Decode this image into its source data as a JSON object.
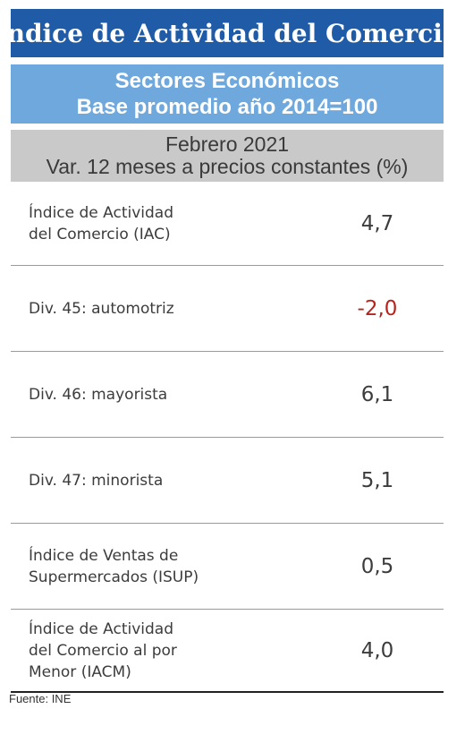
{
  "title": "Índice de Actividad del Comercio",
  "subtitle": {
    "line1": "Sectores Económicos",
    "line2": "Base promedio año 2014=100"
  },
  "period": {
    "line1": "Febrero 2021",
    "line2": "Var. 12 meses a precios constantes (%)"
  },
  "rows": [
    {
      "label": "Índice de Actividad\ndel Comercio (IAC)",
      "value": "4,7"
    },
    {
      "label": "Div. 45: automotriz",
      "value": "-2,0"
    },
    {
      "label": "Div. 46: mayorista",
      "value": "6,1"
    },
    {
      "label": "Div. 47: minorista",
      "value": "5,1"
    },
    {
      "label": "Índice de Ventas de\nSupermercados (ISUP)",
      "value": "0,5"
    },
    {
      "label": "Índice de Actividad\ndel Comercio al por\nMenor (IACM)",
      "value": "4,0"
    }
  ],
  "colors": {
    "title_bg": "#1f5ba6",
    "subtitle_bg": "#6fa8dc",
    "period_bg": "#c9c9c9",
    "negative_value": "#b8241c"
  },
  "source": "Fuente: INE"
}
